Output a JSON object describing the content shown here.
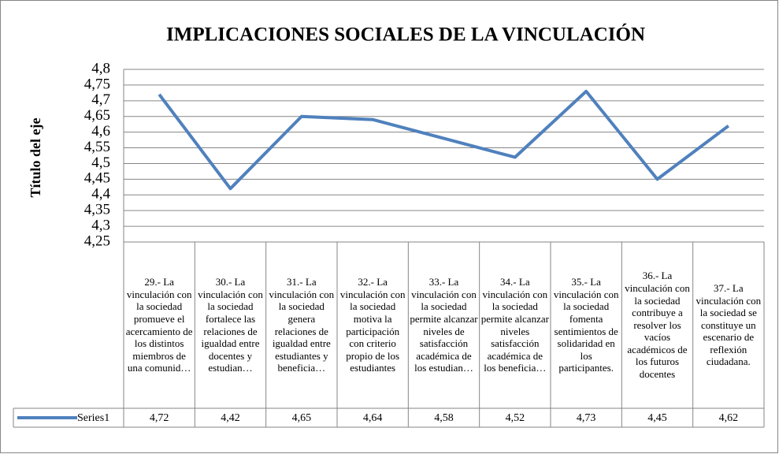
{
  "chart_data": {
    "type": "line",
    "title": "IMPLICACIONES SOCIALES DE LA VINCULACIÓN",
    "y_label": "Título del eje",
    "categories": [
      "29.- La vinculación con la sociedad promueve el acercamiento de los distintos miembros de una comunid…",
      "30.- La vinculación con la sociedad fortalece las relaciones de igualdad entre docentes y estudian…",
      "31.- La vinculación con la sociedad genera relaciones de igualdad entre estudiantes y beneficia…",
      "32.- La vinculación con la sociedad motiva la participación con criterio propio de los estudiantes",
      "33.- La vinculación con la sociedad permite alcanzar niveles de satisfacción académica de los estudian…",
      "34.- La vinculación con la sociedad permite alcanzar niveles satisfacción académica de los beneficia…",
      "35.- La vinculación con la sociedad fomenta sentimientos de solidaridad en los participantes.",
      "36.- La vinculación con la sociedad contribuye a resolver los vacíos académicos de los futuros docentes",
      "37.- La vinculación con la sociedad se constituye un escenario de reflexión ciudadana."
    ],
    "series": [
      {
        "name": "Series1",
        "color": "#4f81bd",
        "values": [
          4.72,
          4.42,
          4.65,
          4.64,
          4.58,
          4.52,
          4.73,
          4.45,
          4.62
        ],
        "value_labels": [
          "4,72",
          "4,42",
          "4,65",
          "4,64",
          "4,58",
          "4,52",
          "4,73",
          "4,45",
          "4,62"
        ]
      }
    ],
    "ylim": [
      4.25,
      4.8
    ],
    "yticks": [
      {
        "value": 4.25,
        "label": "4,25"
      },
      {
        "value": 4.3,
        "label": "4,3"
      },
      {
        "value": 4.35,
        "label": "4,35"
      },
      {
        "value": 4.4,
        "label": "4,4"
      },
      {
        "value": 4.45,
        "label": "4,45"
      },
      {
        "value": 4.5,
        "label": "4,5"
      },
      {
        "value": 4.55,
        "label": "4,55"
      },
      {
        "value": 4.6,
        "label": "4,6"
      },
      {
        "value": 4.65,
        "label": "4,65"
      },
      {
        "value": 4.7,
        "label": "4,7"
      },
      {
        "value": 4.75,
        "label": "4,75"
      },
      {
        "value": 4.8,
        "label": "4,8"
      }
    ],
    "grid": true
  }
}
